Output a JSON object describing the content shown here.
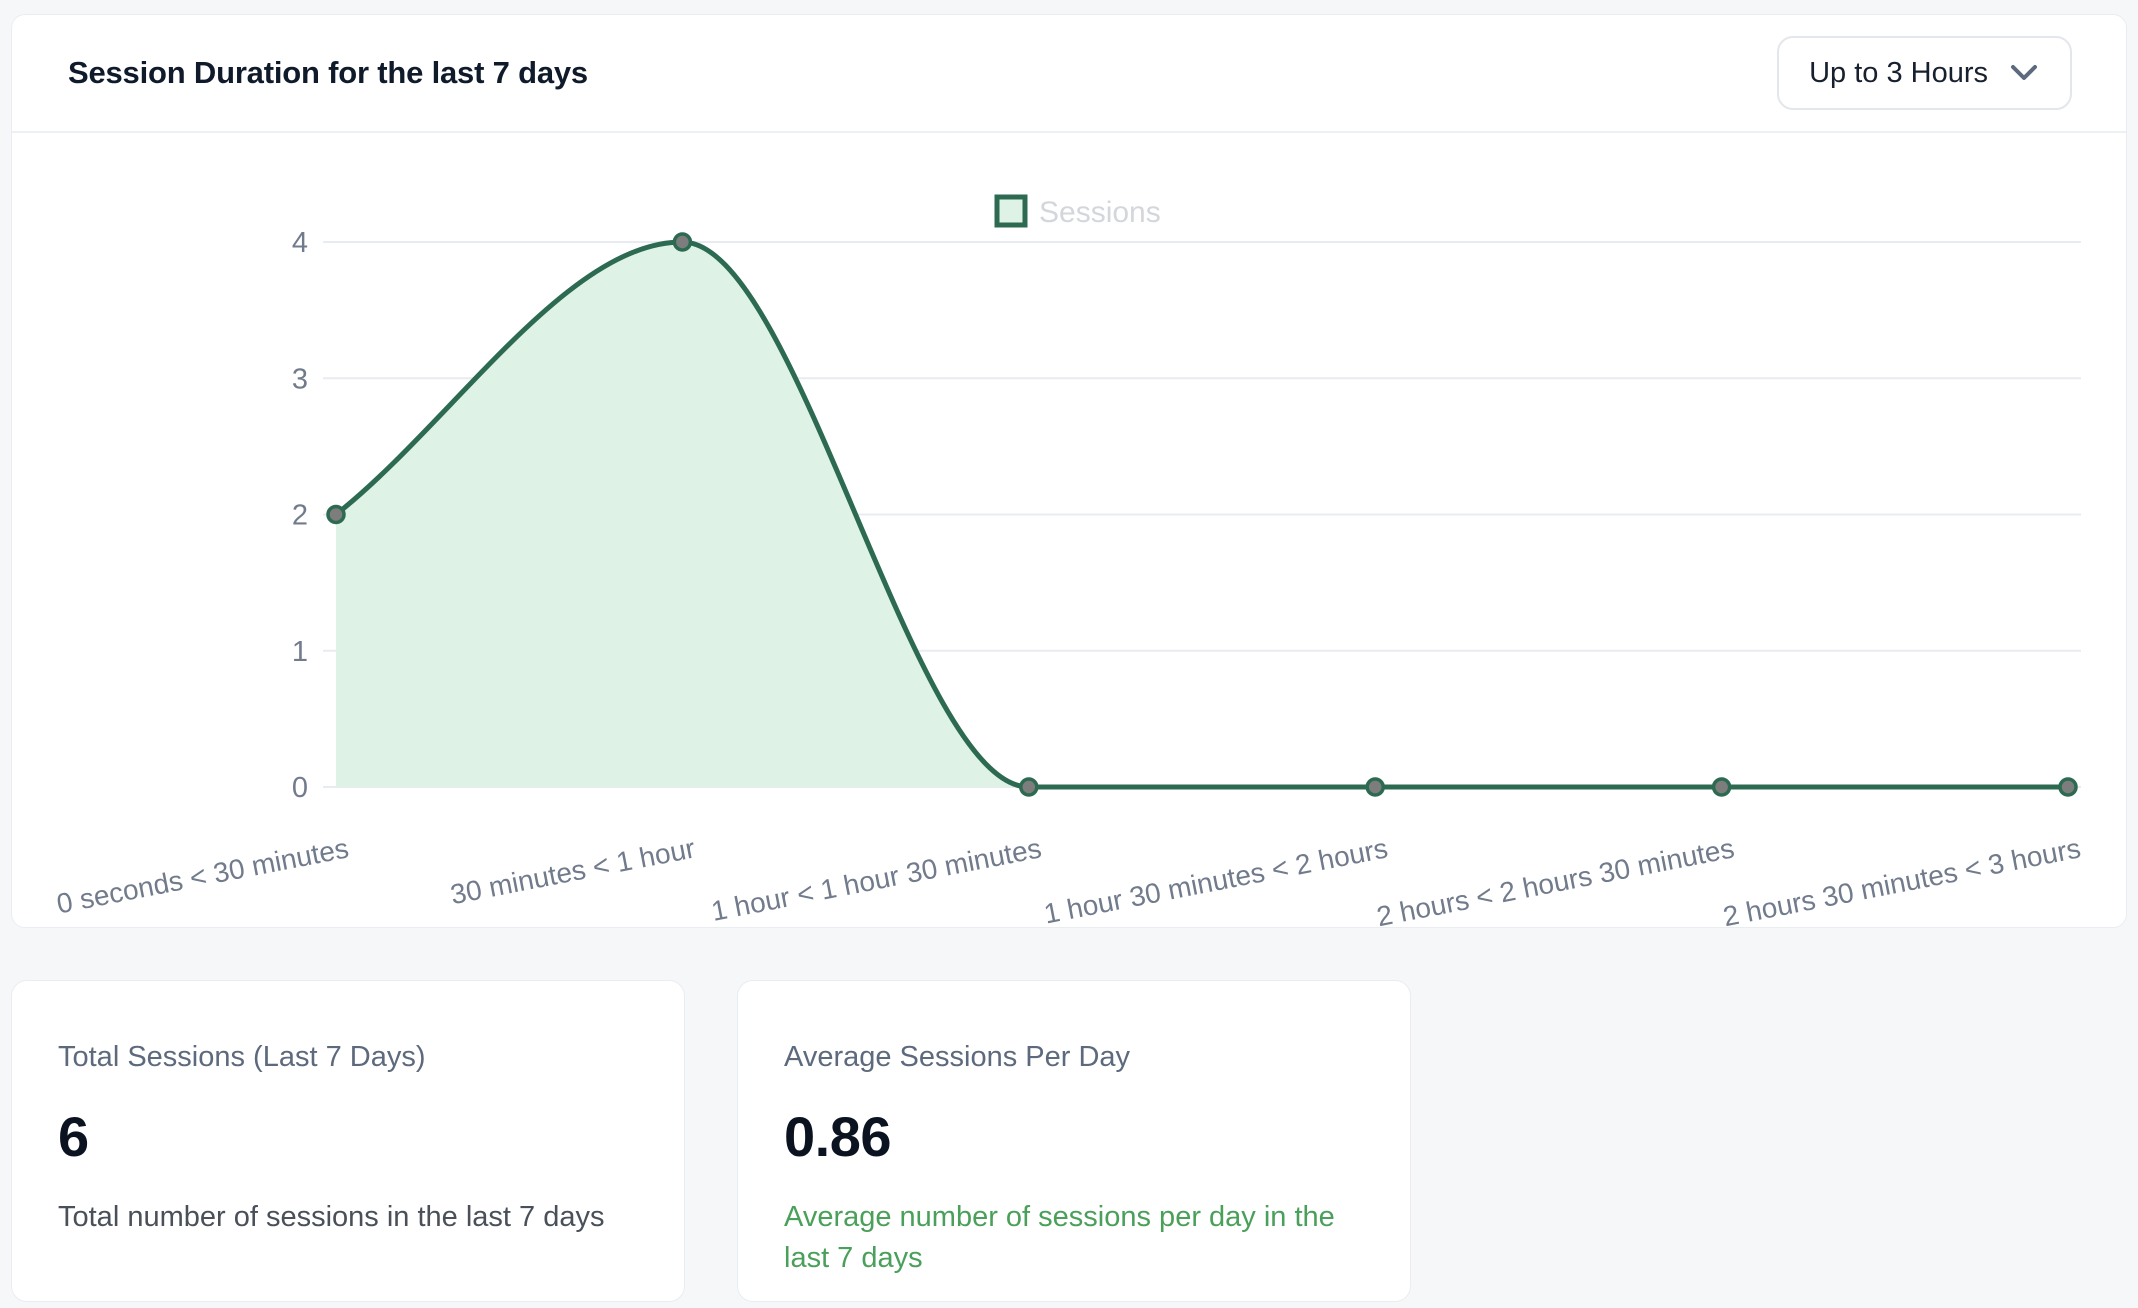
{
  "chart_card": {
    "title": "Session Duration for the last 7 days",
    "range_dropdown": {
      "value": "Up to 3 Hours",
      "icon": "chevron-down"
    }
  },
  "chart_data": {
    "type": "area",
    "title": "Session Duration for the last 7 days",
    "categories": [
      "0 seconds < 30 minutes",
      "30 minutes < 1 hour",
      "1 hour < 1 hour 30 minutes",
      "1 hour 30 minutes < 2 hours",
      "2 hours < 2 hours 30 minutes",
      "2 hours 30 minutes < 3 hours"
    ],
    "series": [
      {
        "name": "Sessions",
        "values": [
          2,
          4,
          0,
          0,
          0,
          0
        ]
      }
    ],
    "xlabel": "",
    "ylabel": "",
    "ylim": [
      0,
      4
    ],
    "ytick_step": 1,
    "grid": true,
    "legend_position": "top-center",
    "legend_entries": [
      "Sessions"
    ],
    "colors": {
      "line": "#2d6a52",
      "fill": "#dff2e6",
      "point_fill": "#7d7d7d",
      "grid": "#e8ecf0",
      "tick_label": "#717b8c",
      "legend_text": "#d3d7dc"
    }
  },
  "stat_cards": [
    {
      "title": "Total Sessions (Last 7 Days)",
      "value": "6",
      "description": "Total number of sessions in the last 7 days",
      "description_color": "#4a5059"
    },
    {
      "title": "Average Sessions Per Day",
      "value": "0.86",
      "description": "Average number of sessions per day in the last 7 days",
      "description_color": "#4aa05a"
    }
  ]
}
